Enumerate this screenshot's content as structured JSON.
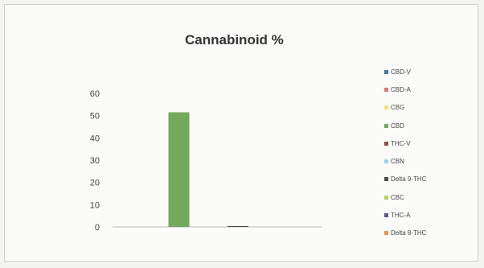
{
  "chart_data": {
    "type": "bar",
    "title": "Cannabinoid %",
    "ylim": [
      0,
      60
    ],
    "yticks": [
      0,
      10,
      20,
      30,
      40,
      50,
      60
    ],
    "grid": false,
    "legend_position": "right",
    "series": [
      {
        "name": "CBD-V",
        "value": 0,
        "color": "#4f6fb0"
      },
      {
        "name": "CBD-A",
        "value": 0,
        "color": "#d9776d"
      },
      {
        "name": "CBG",
        "value": 0,
        "color": "#f2e07a"
      },
      {
        "name": "CBD",
        "value": 51.5,
        "color": "#74a85a"
      },
      {
        "name": "THC-V",
        "value": 0,
        "color": "#8f4a4a"
      },
      {
        "name": "CBN",
        "value": 0,
        "color": "#9fd0e8"
      },
      {
        "name": "Delta 9-THC",
        "value": 0.4,
        "color": "#4a4f4a"
      },
      {
        "name": "CBC",
        "value": 0,
        "color": "#b5d15e"
      },
      {
        "name": "THC-A",
        "value": 0,
        "color": "#5a5a80"
      },
      {
        "name": "Delta 8-THC",
        "value": 0,
        "color": "#e8934a"
      }
    ]
  }
}
